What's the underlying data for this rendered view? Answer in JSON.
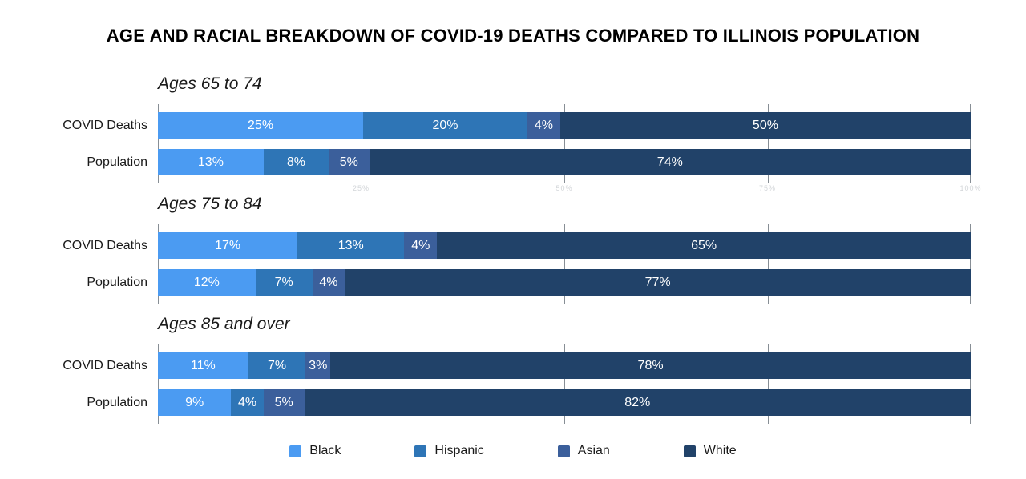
{
  "title": "AGE AND RACIAL BREAKDOWN OF COVID-19 DEATHS COMPARED TO ILLINOIS POPULATION",
  "axis": {
    "gridline_positions_percent": [
      0,
      25,
      50,
      75,
      100
    ],
    "faint_tick_labels": [
      {
        "position_percent": 25,
        "label": "25%"
      },
      {
        "position_percent": 50,
        "label": "50%"
      },
      {
        "position_percent": 75,
        "label": "75%"
      },
      {
        "position_percent": 100,
        "label": "100%"
      }
    ]
  },
  "legend": [
    {
      "label": "Black",
      "color": "#4b9bf2"
    },
    {
      "label": "Hispanic",
      "color": "#2e75b6"
    },
    {
      "label": "Asian",
      "color": "#3b5f9b"
    },
    {
      "label": "White",
      "color": "#214269"
    }
  ],
  "chart_data": {
    "type": "bar",
    "stacked": true,
    "orientation": "horizontal",
    "title": "AGE AND RACIAL BREAKDOWN OF COVID-19 DEATHS COMPARED TO ILLINOIS POPULATION",
    "categories": [
      "Black",
      "Hispanic",
      "Asian",
      "White"
    ],
    "series_colors": [
      "#4b9bf2",
      "#2e75b6",
      "#3b5f9b",
      "#214269"
    ],
    "unit": "%",
    "xlim": [
      0,
      100
    ],
    "grid": true,
    "legend_position": "bottom",
    "groups": [
      {
        "label": "Ages 65 to 74",
        "rows": [
          {
            "label": "COVID Deaths",
            "values": [
              25,
              20,
              4,
              50
            ],
            "value_labels": [
              "25%",
              "20%",
              "4%",
              "50%"
            ]
          },
          {
            "label": "Population",
            "values": [
              13,
              8,
              5,
              74
            ],
            "value_labels": [
              "13%",
              "8%",
              "5%",
              "74%"
            ]
          }
        ]
      },
      {
        "label": "Ages 75 to 84",
        "rows": [
          {
            "label": "COVID Deaths",
            "values": [
              17,
              13,
              4,
              65
            ],
            "value_labels": [
              "17%",
              "13%",
              "4%",
              "65%"
            ]
          },
          {
            "label": "Population",
            "values": [
              12,
              7,
              4,
              77
            ],
            "value_labels": [
              "12%",
              "7%",
              "4%",
              "77%"
            ]
          }
        ]
      },
      {
        "label": "Ages 85 and over",
        "rows": [
          {
            "label": "COVID Deaths",
            "values": [
              11,
              7,
              3,
              78
            ],
            "value_labels": [
              "11%",
              "7%",
              "3%",
              "78%"
            ]
          },
          {
            "label": "Population",
            "values": [
              9,
              4,
              5,
              82
            ],
            "value_labels": [
              "9%",
              "4%",
              "5%",
              "82%"
            ]
          }
        ]
      }
    ]
  }
}
